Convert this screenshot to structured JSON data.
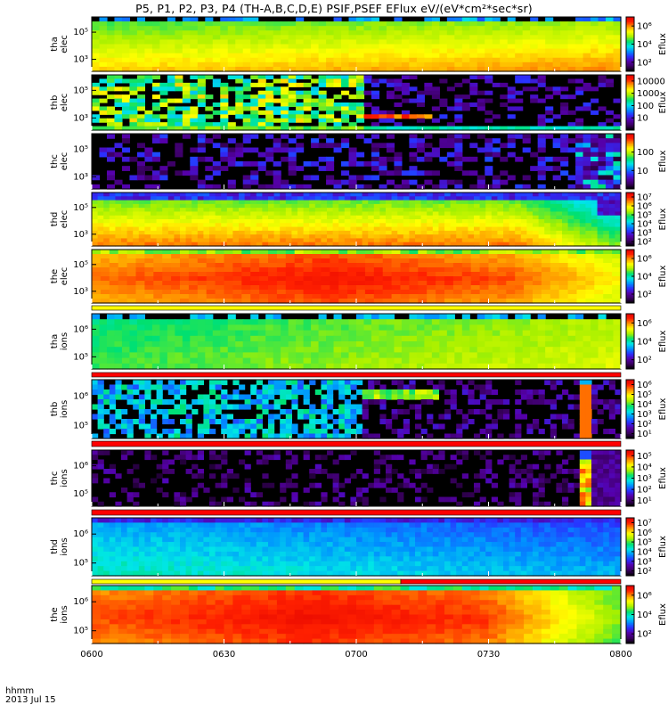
{
  "title": "P5, P1, P2, P3, P4  (TH-A,B,C,D,E) PSIF,PSEF EFlux eV/(eV*cm²*sec*sr)",
  "x_axis": {
    "label_line1": "hhmm",
    "label_line2": "2013 Jul 15",
    "ticks": [
      "0600",
      "0630",
      "0700",
      "0730",
      "0800"
    ]
  },
  "colors": {
    "cmap": [
      "#000000",
      "#3a0060",
      "#5500aa",
      "#2a30ff",
      "#0090ff",
      "#00e6e6",
      "#00e070",
      "#a6f000",
      "#ffff00",
      "#ff9a00",
      "#ff2000",
      "#e00000"
    ],
    "bar_red": "#ff0000",
    "bar_yellow": "#ffff00"
  },
  "chart_data": [
    {
      "type": "heatmap",
      "probe": "tha",
      "species": "elec",
      "ylabel": [
        "tha",
        "elec"
      ],
      "yticks": [
        "10⁵",
        "10³"
      ],
      "cbar_title": "Eflux",
      "cbar_ticks": [
        "10⁶",
        "10⁴",
        "10²"
      ],
      "cbar_exp": [
        6,
        4,
        2
      ],
      "cmin": 1,
      "cmax": 7
    },
    {
      "type": "heatmap",
      "probe": "thb",
      "species": "elec",
      "ylabel": [
        "thb",
        "elec"
      ],
      "yticks": [
        "10⁵",
        "10³"
      ],
      "cbar_title": "Eflux",
      "cbar_ticks": [
        "10000",
        "1000",
        "100",
        "10"
      ],
      "cbar_exp": [
        4,
        3,
        2,
        1
      ],
      "cmin": 0,
      "cmax": 4.5
    },
    {
      "type": "heatmap",
      "probe": "thc",
      "species": "elec",
      "ylabel": [
        "thc",
        "elec"
      ],
      "yticks": [
        "10⁵",
        "10³"
      ],
      "cbar_title": "Eflux",
      "cbar_ticks": [
        "100",
        "10"
      ],
      "cbar_exp": [
        2,
        1
      ],
      "cmin": 0,
      "cmax": 3
    },
    {
      "type": "heatmap",
      "probe": "thd",
      "species": "elec",
      "ylabel": [
        "thd",
        "elec"
      ],
      "yticks": [
        "10⁵",
        "10³"
      ],
      "cbar_title": "Eflux",
      "cbar_ticks": [
        "10⁷",
        "10⁶",
        "10⁵",
        "10⁴",
        "10³",
        "10²"
      ],
      "cbar_exp": [
        7,
        6,
        5,
        4,
        3,
        2
      ],
      "cmin": 1.5,
      "cmax": 7.5
    },
    {
      "type": "heatmap",
      "probe": "the",
      "species": "elec",
      "ylabel": [
        "the",
        "elec"
      ],
      "yticks": [
        "10⁵",
        "10³"
      ],
      "cbar_title": "Eflux",
      "cbar_ticks": [
        "10⁶",
        "10⁴",
        "10²"
      ],
      "cbar_exp": [
        6,
        4,
        2
      ],
      "cmin": 1,
      "cmax": 7
    },
    {
      "type": "heatmap",
      "probe": "tha",
      "species": "ions",
      "ylabel": [
        "tha",
        "ions"
      ],
      "yticks": [
        "10⁶",
        "10⁵"
      ],
      "cbar_title": "Eflux",
      "cbar_ticks": [
        "10⁶",
        "10⁴",
        "10²"
      ],
      "cbar_exp": [
        6,
        4,
        2
      ],
      "cmin": 1,
      "cmax": 7
    },
    {
      "type": "heatmap",
      "probe": "thb",
      "species": "ions",
      "ylabel": [
        "thb",
        "ions"
      ],
      "yticks": [
        "10⁶",
        "10⁵"
      ],
      "cbar_title": "Eflux",
      "cbar_ticks": [
        "10⁶",
        "10⁵",
        "10⁴",
        "10³",
        "10²",
        "10¹"
      ],
      "cbar_exp": [
        6,
        5,
        4,
        3,
        2,
        1
      ],
      "cmin": 0.5,
      "cmax": 6.5
    },
    {
      "type": "heatmap",
      "probe": "thc",
      "species": "ions",
      "ylabel": [
        "thc",
        "ions"
      ],
      "yticks": [
        "10⁶",
        "10⁵"
      ],
      "cbar_title": "Eflux",
      "cbar_ticks": [
        "10⁵",
        "10⁴",
        "10³",
        "10²",
        "10¹"
      ],
      "cbar_exp": [
        5,
        4,
        3,
        2,
        1
      ],
      "cmin": 0.5,
      "cmax": 5.5
    },
    {
      "type": "heatmap",
      "probe": "thd",
      "species": "ions",
      "ylabel": [
        "thd",
        "ions"
      ],
      "yticks": [
        "10⁶",
        "10⁵"
      ],
      "cbar_title": "Eflux",
      "cbar_ticks": [
        "10⁷",
        "10⁶",
        "10⁵",
        "10⁴",
        "10³",
        "10²"
      ],
      "cbar_exp": [
        7,
        6,
        5,
        4,
        3,
        2
      ],
      "cmin": 1.5,
      "cmax": 7.5
    },
    {
      "type": "heatmap",
      "probe": "the",
      "species": "ions",
      "ylabel": [
        "the",
        "ions"
      ],
      "yticks": [
        "10⁶",
        "10⁵"
      ],
      "cbar_title": "Eflux",
      "cbar_ticks": [
        "10⁶",
        "10⁴",
        "10²"
      ],
      "cbar_exp": [
        6,
        4,
        2
      ],
      "cmin": 1,
      "cmax": 7
    }
  ]
}
